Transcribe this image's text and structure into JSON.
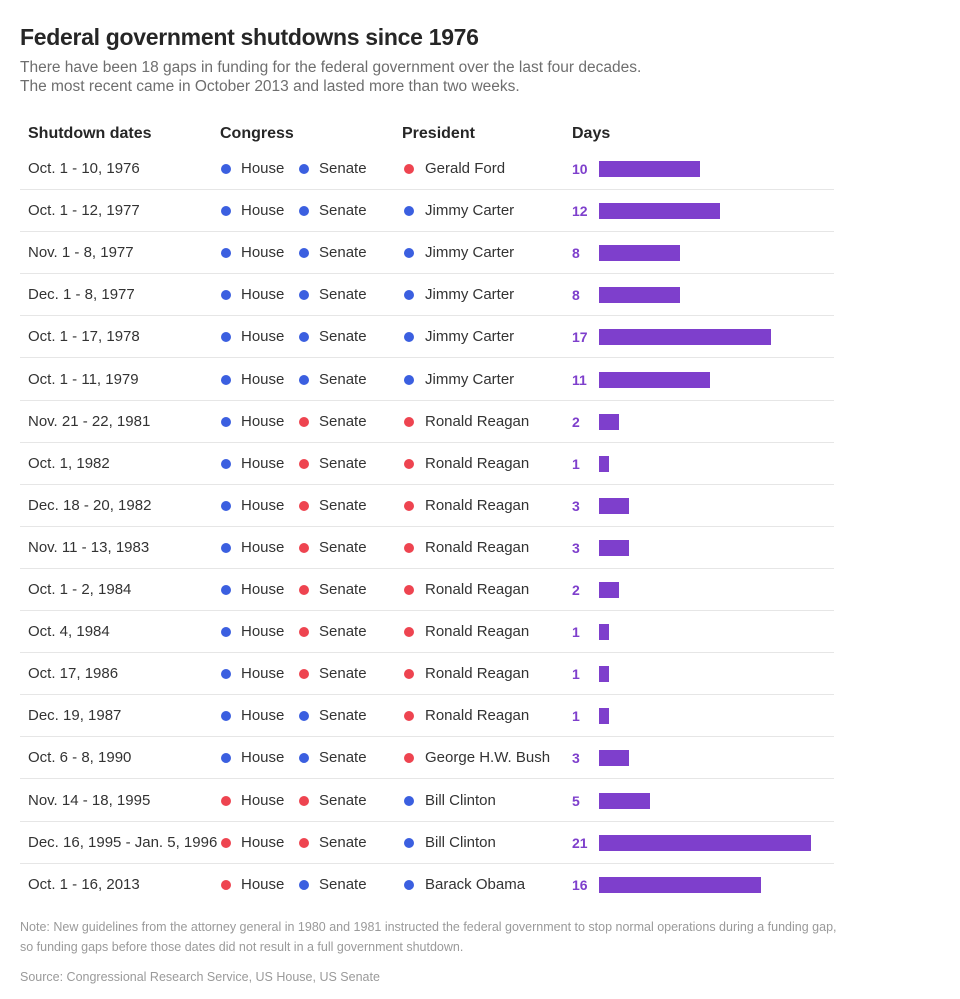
{
  "title": "Federal government shutdowns since 1976",
  "subtitle_line1": "There have been 18 gaps in funding for the federal government over the last four decades.",
  "subtitle_line2": "The most recent came in October 2013 and lasted more than two weeks.",
  "headers": {
    "dates": "Shutdown dates",
    "congress": "Congress",
    "president": "President",
    "days": "Days"
  },
  "labels": {
    "house": "House",
    "senate": "Senate"
  },
  "colors": {
    "democrat": "#3b5fe0",
    "republican": "#ee4450",
    "bar": "#7e3fcc"
  },
  "chart_data": {
    "type": "bar",
    "orientation": "horizontal",
    "value_label": "Days",
    "rows": [
      {
        "dates": "Oct. 1 - 10, 1976",
        "house": "D",
        "senate": "D",
        "president": "Gerald Ford",
        "president_party": "R",
        "days": 10
      },
      {
        "dates": "Oct. 1 - 12, 1977",
        "house": "D",
        "senate": "D",
        "president": "Jimmy Carter",
        "president_party": "D",
        "days": 12
      },
      {
        "dates": "Nov. 1 - 8, 1977",
        "house": "D",
        "senate": "D",
        "president": "Jimmy Carter",
        "president_party": "D",
        "days": 8
      },
      {
        "dates": "Dec. 1 - 8, 1977",
        "house": "D",
        "senate": "D",
        "president": "Jimmy Carter",
        "president_party": "D",
        "days": 8
      },
      {
        "dates": "Oct. 1 - 17, 1978",
        "house": "D",
        "senate": "D",
        "president": "Jimmy Carter",
        "president_party": "D",
        "days": 17
      },
      {
        "dates": "Oct. 1 - 11, 1979",
        "house": "D",
        "senate": "D",
        "president": "Jimmy Carter",
        "president_party": "D",
        "days": 11
      },
      {
        "dates": "Nov. 21 - 22, 1981",
        "house": "D",
        "senate": "R",
        "president": "Ronald Reagan",
        "president_party": "R",
        "days": 2
      },
      {
        "dates": "Oct. 1, 1982",
        "house": "D",
        "senate": "R",
        "president": "Ronald Reagan",
        "president_party": "R",
        "days": 1
      },
      {
        "dates": "Dec. 18 - 20, 1982",
        "house": "D",
        "senate": "R",
        "president": "Ronald Reagan",
        "president_party": "R",
        "days": 3
      },
      {
        "dates": "Nov. 11 - 13, 1983",
        "house": "D",
        "senate": "R",
        "president": "Ronald Reagan",
        "president_party": "R",
        "days": 3
      },
      {
        "dates": "Oct. 1 - 2, 1984",
        "house": "D",
        "senate": "R",
        "president": "Ronald Reagan",
        "president_party": "R",
        "days": 2
      },
      {
        "dates": "Oct. 4, 1984",
        "house": "D",
        "senate": "R",
        "president": "Ronald Reagan",
        "president_party": "R",
        "days": 1
      },
      {
        "dates": "Oct. 17, 1986",
        "house": "D",
        "senate": "R",
        "president": "Ronald Reagan",
        "president_party": "R",
        "days": 1
      },
      {
        "dates": "Dec. 19, 1987",
        "house": "D",
        "senate": "D",
        "president": "Ronald Reagan",
        "president_party": "R",
        "days": 1
      },
      {
        "dates": "Oct. 6 - 8, 1990",
        "house": "D",
        "senate": "D",
        "president": "George H.W. Bush",
        "president_party": "R",
        "days": 3
      },
      {
        "dates": "Nov. 14 - 18, 1995",
        "house": "R",
        "senate": "R",
        "president": "Bill Clinton",
        "president_party": "D",
        "days": 5
      },
      {
        "dates": "Dec. 16, 1995 - Jan. 5, 1996",
        "house": "R",
        "senate": "R",
        "president": "Bill Clinton",
        "president_party": "D",
        "days": 21
      },
      {
        "dates": "Oct. 1 - 16, 2013",
        "house": "R",
        "senate": "D",
        "president": "Barack Obama",
        "president_party": "D",
        "days": 16
      }
    ]
  },
  "note": "Note: New guidelines from the attorney general in 1980 and 1981 instructed the federal government to stop normal operations during a funding gap, so funding gaps before those dates did not result in a full government shutdown.",
  "source": "Source: Congressional Research Service, US House, US Senate"
}
